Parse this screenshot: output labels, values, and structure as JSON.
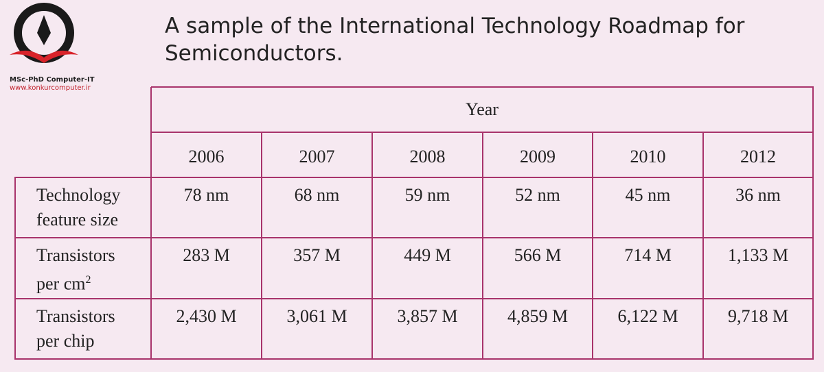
{
  "logo": {
    "line1": "MSc-PhD Computer-IT",
    "line2": "www.konkurcomputer.ir"
  },
  "header": {
    "title_lines": [
      "A sample of the International Technology Roadmap for",
      "Semiconductors."
    ]
  },
  "table": {
    "group_header": "Year",
    "years": [
      "2006",
      "2007",
      "2008",
      "2009",
      "2010",
      "2012"
    ],
    "rows": [
      {
        "label_lines": [
          "Technology",
          "feature size"
        ],
        "cells": [
          "78 nm",
          "68 nm",
          "59 nm",
          "52 nm",
          "45 nm",
          "36 nm"
        ]
      },
      {
        "label_lines": [
          "Transistors",
          "per cm"
        ],
        "label_sup": "2",
        "cells": [
          "283 M",
          "357 M",
          "449 M",
          "566 M",
          "714 M",
          "1,133 M"
        ]
      },
      {
        "label_lines": [
          "Transistors",
          "per chip"
        ],
        "cells": [
          "2,430 M",
          "3,061 M",
          "3,857 M",
          "4,859 M",
          "6,122 M",
          "9,718 M"
        ]
      }
    ]
  }
}
